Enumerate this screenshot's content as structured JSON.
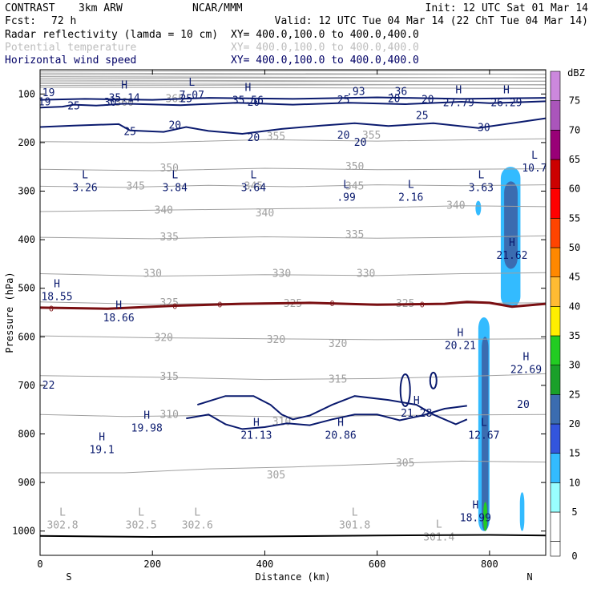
{
  "header": {
    "model": "CONTRAST",
    "grid": "3km ARW",
    "org": "NCAR/MMM",
    "init": "Init: 12 UTC Sat 01 Mar 14",
    "fcst_label": "Fcst:",
    "fcst_value": "72 h",
    "valid": "Valid: 12 UTC Tue 04 Mar 14 (22 ChT Tue 04 Mar 14)"
  },
  "legend_rows": [
    {
      "label": "Radar reflectivity (lamda = 10 cm)",
      "xy": "XY= 400.0,100.0 to 400.0,400.0",
      "color": "#000000"
    },
    {
      "label": "Potential temperature",
      "xy": "XY= 400.0,100.0 to 400.0,400.0",
      "color": "#bdbdbd"
    },
    {
      "label": "Horizontal wind speed",
      "xy": "XY= 400.0,100.0 to 400.0,400.0",
      "color": "#000066"
    }
  ],
  "chart_data": {
    "type": "cross-section",
    "xlabel": "Distance (km)",
    "ylabel": "Pressure (hPa)",
    "xlim": [
      0,
      900
    ],
    "ylim": [
      1050,
      50
    ],
    "x_ticks": [
      0,
      200,
      400,
      600,
      800
    ],
    "y_ticks": [
      100,
      200,
      300,
      400,
      500,
      600,
      700,
      800,
      900,
      1000
    ],
    "x_end_labels": {
      "left": "S",
      "right": "N"
    },
    "colorbar": {
      "unit": "dBZ",
      "levels": [
        0,
        5,
        10,
        15,
        20,
        25,
        30,
        35,
        40,
        45,
        50,
        55,
        60,
        65,
        70,
        75
      ],
      "colors": [
        "#ffffff",
        "#99ffff",
        "#33bbff",
        "#3355dd",
        "#3b6cb0",
        "#1aa02a",
        "#22cc22",
        "#ffee00",
        "#ffbb33",
        "#ff8800",
        "#ff4400",
        "#ff0000",
        "#cc0000",
        "#990077",
        "#aa55bb",
        "#cc88dd"
      ]
    },
    "theta_contours": [
      {
        "value": 345,
        "points": [
          [
            0,
            290
          ],
          [
            150,
            292
          ],
          [
            300,
            288
          ],
          [
            450,
            291
          ],
          [
            600,
            287
          ],
          [
            750,
            289
          ],
          [
            900,
            287
          ]
        ]
      },
      {
        "value": 350,
        "points": [
          [
            0,
            255
          ],
          [
            200,
            258
          ],
          [
            400,
            253
          ],
          [
            600,
            256
          ],
          [
            900,
            254
          ]
        ]
      },
      {
        "value": 355,
        "points": [
          [
            0,
            198
          ],
          [
            200,
            200
          ],
          [
            400,
            194
          ],
          [
            600,
            197
          ],
          [
            900,
            192
          ]
        ]
      },
      {
        "value": 340,
        "points": [
          [
            0,
            342
          ],
          [
            150,
            340
          ],
          [
            300,
            338
          ],
          [
            450,
            336
          ],
          [
            600,
            334
          ],
          [
            750,
            330
          ],
          [
            900,
            332
          ]
        ]
      },
      {
        "value": 335,
        "points": [
          [
            0,
            395
          ],
          [
            200,
            398
          ],
          [
            400,
            394
          ],
          [
            600,
            397
          ],
          [
            750,
            395
          ],
          [
            900,
            392
          ]
        ]
      },
      {
        "value": 330,
        "points": [
          [
            0,
            470
          ],
          [
            200,
            475
          ],
          [
            400,
            472
          ],
          [
            600,
            474
          ],
          [
            750,
            470
          ],
          [
            900,
            468
          ]
        ]
      },
      {
        "value": 325,
        "points": [
          [
            0,
            528
          ],
          [
            200,
            533
          ],
          [
            400,
            530
          ],
          [
            600,
            532
          ],
          [
            900,
            530
          ]
        ]
      },
      {
        "value": 320,
        "points": [
          [
            0,
            598
          ],
          [
            200,
            602
          ],
          [
            400,
            604
          ],
          [
            600,
            606
          ],
          [
            900,
            604
          ]
        ]
      },
      {
        "value": 315,
        "points": [
          [
            0,
            680
          ],
          [
            200,
            683
          ],
          [
            400,
            688
          ],
          [
            600,
            686
          ],
          [
            800,
            680
          ],
          [
            900,
            676
          ]
        ]
      },
      {
        "value": 310,
        "points": [
          [
            0,
            760
          ],
          [
            150,
            764
          ],
          [
            300,
            762
          ],
          [
            450,
            765
          ],
          [
            600,
            762
          ],
          [
            900,
            760
          ]
        ]
      },
      {
        "value": 305,
        "points": [
          [
            0,
            880
          ],
          [
            150,
            880
          ],
          [
            300,
            872
          ],
          [
            450,
            868
          ],
          [
            600,
            862
          ],
          [
            750,
            856
          ],
          [
            900,
            858
          ]
        ]
      }
    ],
    "theta_labels": [
      "365",
      "360",
      "355",
      "350",
      "345",
      "340",
      "335",
      "330",
      "325",
      "320",
      "315",
      "310",
      "305"
    ],
    "wind_labels": [
      "19",
      "25",
      "30",
      "20",
      "25",
      "20",
      "25",
      "20",
      "25",
      "20",
      "20",
      "20",
      "20",
      "25",
      "30",
      "20"
    ],
    "wind_contours": [
      {
        "value": 20,
        "points": [
          [
            0,
            128
          ],
          [
            40,
            126
          ],
          [
            60,
            122
          ],
          [
            100,
            124
          ],
          [
            150,
            120
          ],
          [
            250,
            123
          ],
          [
            350,
            118
          ],
          [
            450,
            122
          ],
          [
            550,
            118
          ],
          [
            650,
            121
          ],
          [
            750,
            116
          ],
          [
            800,
            119
          ],
          [
            900,
            115
          ]
        ]
      },
      {
        "value": 25,
        "points": [
          [
            0,
            112
          ],
          [
            80,
            110
          ],
          [
            200,
            112
          ],
          [
            300,
            108
          ],
          [
            450,
            110
          ],
          [
            600,
            107
          ],
          [
            750,
            110
          ],
          [
            900,
            108
          ]
        ]
      },
      {
        "value": 20,
        "points": [
          [
            0,
            168
          ],
          [
            60,
            165
          ],
          [
            140,
            162
          ],
          [
            160,
            175
          ],
          [
            220,
            178
          ],
          [
            260,
            168
          ],
          [
            300,
            176
          ],
          [
            360,
            182
          ],
          [
            430,
            172
          ],
          [
            500,
            165
          ],
          [
            560,
            160
          ],
          [
            620,
            166
          ],
          [
            700,
            160
          ],
          [
            780,
            170
          ],
          [
            840,
            160
          ],
          [
            900,
            150
          ]
        ]
      },
      {
        "value": 20,
        "points": [
          [
            280,
            740
          ],
          [
            330,
            722
          ],
          [
            380,
            722
          ],
          [
            410,
            740
          ],
          [
            430,
            760
          ],
          [
            450,
            770
          ],
          [
            480,
            762
          ],
          [
            520,
            740
          ],
          [
            560,
            722
          ],
          [
            620,
            730
          ],
          [
            670,
            740
          ],
          [
            700,
            760
          ],
          [
            740,
            780
          ],
          [
            760,
            770
          ]
        ]
      },
      {
        "value": 20,
        "points": [
          [
            260,
            768
          ],
          [
            300,
            760
          ],
          [
            330,
            780
          ],
          [
            360,
            790
          ],
          [
            400,
            786
          ],
          [
            440,
            778
          ],
          [
            480,
            782
          ],
          [
            520,
            770
          ],
          [
            560,
            760
          ],
          [
            600,
            760
          ],
          [
            640,
            772
          ],
          [
            680,
            762
          ],
          [
            720,
            748
          ],
          [
            760,
            742
          ]
        ]
      }
    ],
    "freezing_level": {
      "value": 0,
      "points": [
        [
          0,
          540
        ],
        [
          120,
          542
        ],
        [
          240,
          536
        ],
        [
          360,
          532
        ],
        [
          480,
          530
        ],
        [
          600,
          534
        ],
        [
          720,
          532
        ],
        [
          760,
          528
        ],
        [
          800,
          530
        ],
        [
          840,
          538
        ],
        [
          900,
          532
        ]
      ]
    },
    "terrain": {
      "points": [
        [
          0,
          1010
        ],
        [
          200,
          1012
        ],
        [
          400,
          1011
        ],
        [
          600,
          1009
        ],
        [
          800,
          1008
        ],
        [
          900,
          1009
        ]
      ]
    },
    "reflectivity_cells": [
      {
        "dbz": 10,
        "x": [
          780,
          800
        ],
        "p": [
          1000,
          560
        ]
      },
      {
        "dbz": 20,
        "x": [
          786,
          798
        ],
        "p": [
          1000,
          600
        ]
      },
      {
        "dbz": 30,
        "x": [
          789,
          796
        ],
        "p": [
          1000,
          940
        ]
      },
      {
        "dbz": 10,
        "x": [
          820,
          855
        ],
        "p": [
          540,
          250
        ]
      },
      {
        "dbz": 20,
        "x": [
          826,
          850
        ],
        "p": [
          460,
          280
        ]
      },
      {
        "dbz": 10,
        "x": [
          854,
          862
        ],
        "p": [
          1000,
          920
        ]
      },
      {
        "dbz": 10,
        "x": [
          775,
          785
        ],
        "p": [
          350,
          320
        ]
      }
    ],
    "annotations": [
      {
        "kind": "H",
        "text": "35.14",
        "x": 150,
        "p": 95
      },
      {
        "kind": "L",
        "text": "7.07",
        "x": 270,
        "p": 90
      },
      {
        "kind": "H",
        "text": "35.56",
        "x": 370,
        "p": 100
      },
      {
        "kind": "H",
        "text": "27.79",
        "x": 745,
        "p": 105
      },
      {
        "kind": "H",
        "text": "26.29",
        "x": 830,
        "p": 105
      },
      {
        "kind": "L",
        "text": "10.7",
        "x": 880,
        "p": 240
      },
      {
        "kind": "L",
        "text": "3.26",
        "x": 80,
        "p": 280
      },
      {
        "kind": "L",
        "text": "3.84",
        "x": 240,
        "p": 280
      },
      {
        "kind": "L",
        "text": "3.64",
        "x": 380,
        "p": 280
      },
      {
        "kind": "L",
        "text": ".99",
        "x": 545,
        "p": 300
      },
      {
        "kind": "L",
        "text": "2.16",
        "x": 660,
        "p": 300
      },
      {
        "kind": "L",
        "text": "3.63",
        "x": 785,
        "p": 280
      },
      {
        "kind": "H",
        "text": "21.62",
        "x": 840,
        "p": 420
      },
      {
        "kind": "H",
        "text": "18.55",
        "x": 30,
        "p": 505
      },
      {
        "kind": "H",
        "text": "18.66",
        "x": 140,
        "p": 548
      },
      {
        "kind": "H",
        "text": "20.21",
        "x": 748,
        "p": 605
      },
      {
        "kind": "H",
        "text": "22.69",
        "x": 865,
        "p": 655
      },
      {
        "kind": "H",
        "text": "21.28",
        "x": 670,
        "p": 745
      },
      {
        "kind": "H",
        "text": "19.98",
        "x": 190,
        "p": 775
      },
      {
        "kind": "H",
        "text": "21.13",
        "x": 385,
        "p": 790
      },
      {
        "kind": "H",
        "text": "20.86",
        "x": 535,
        "p": 790
      },
      {
        "kind": "L",
        "text": "12.67",
        "x": 790,
        "p": 790
      },
      {
        "kind": "H",
        "text": "19.1",
        "x": 110,
        "p": 820
      },
      {
        "kind": "H",
        "text": "18.99",
        "x": 775,
        "p": 960
      },
      {
        "kind": "L",
        "text": "302.8",
        "x": 40,
        "p": 975
      },
      {
        "kind": "L",
        "text": "302.5",
        "x": 180,
        "p": 975
      },
      {
        "kind": "L",
        "text": "302.6",
        "x": 280,
        "p": 975
      },
      {
        "kind": "L",
        "text": "301.8",
        "x": 560,
        "p": 975
      },
      {
        "kind": "L",
        "text": "301.4",
        "x": 710,
        "p": 1000
      }
    ],
    "top_truncated_labels": [
      ".93",
      ".36",
      "19",
      "22"
    ]
  }
}
